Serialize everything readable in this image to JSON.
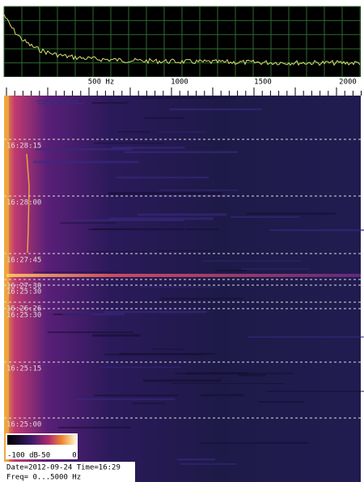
{
  "spectrum": {
    "freq_labels": [
      "500 Hz",
      "1000",
      "1500",
      "2000"
    ]
  },
  "spectrogram": {
    "time_labels": [
      "16:28:15",
      "16:28:00",
      "16:27:45",
      "16:27:30",
      "16:25:30",
      "16:26:26",
      "16:25:30",
      "16:25:15",
      "16:25:00"
    ]
  },
  "colorbar": {
    "labels": [
      "-100 dB",
      "-50",
      "0"
    ]
  },
  "status": {
    "line1": "Date=2012-09-24 Time=16:29",
    "line2": "Freq= 0...5000 Hz"
  }
}
